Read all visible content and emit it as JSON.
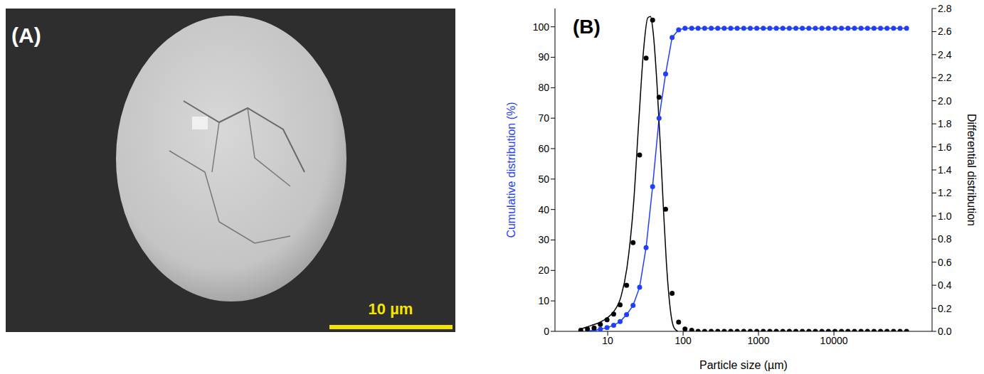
{
  "figure": {
    "panel_a": {
      "label": "(A)",
      "scale_bar_label": "10 µm"
    },
    "panel_b": {
      "label": "(B)"
    }
  },
  "chart_data": {
    "type": "line",
    "xlabel": "Particle size (µm)",
    "ylabel": "Cumulative distribution (%)",
    "y2label": "Differential distribution",
    "log": "x",
    "grid": false,
    "xlim": [
      2,
      200000
    ],
    "xticks": [
      10,
      100,
      1000,
      10000
    ],
    "ylim": [
      0,
      106
    ],
    "yticks": [
      0,
      10,
      20,
      30,
      40,
      50,
      60,
      70,
      80,
      90,
      100
    ],
    "y2lim": [
      0,
      2.8
    ],
    "y2ticks": [
      {
        "value": 0,
        "label": "0.0"
      },
      0.2,
      0.4,
      0.6,
      0.8,
      {
        "value": 1,
        "label": "1.0"
      },
      1.2,
      1.4,
      1.6,
      1.8,
      {
        "value": 2,
        "label": "2.0"
      },
      2.2,
      2.4,
      2.6,
      2.8
    ],
    "series": [
      {
        "color": "#1f3fff",
        "marker": "circle",
        "line_style": "solid",
        "x": [
          4.4,
          5.4,
          6.6,
          8.0,
          9.8,
          12,
          14.6,
          17.8,
          21.7,
          26.5,
          32.3,
          39.4,
          48,
          58.6,
          71.5,
          87.2,
          106,
          130,
          158,
          193,
          236,
          288,
          351,
          428,
          522,
          637,
          777,
          948,
          1157,
          1411,
          1722,
          2100,
          2562,
          3126,
          3814,
          4653,
          5676,
          6925,
          8449,
          10308,
          12575,
          15342,
          18717,
          22835,
          27859,
          33988,
          41466,
          50588,
          61718,
          75296,
          91861
        ],
        "values": [
          null,
          0.1,
          0.3,
          0.7,
          1.2,
          2,
          3.2,
          5.5,
          8.5,
          14.5,
          27.5,
          47.5,
          70,
          84.5,
          96.5,
          99,
          99.5,
          99.5,
          99.5,
          99.5,
          99.5,
          99.5,
          99.5,
          99.5,
          99.5,
          99.5,
          99.5,
          99.5,
          99.5,
          99.5,
          99.5,
          99.5,
          99.5,
          99.5,
          99.5,
          99.5,
          99.5,
          99.5,
          99.5,
          99.5,
          99.5,
          99.5,
          99.5,
          99.5,
          99.5,
          99.5,
          99.5,
          99.5,
          99.5,
          99.5,
          99.5
        ]
      },
      {
        "axis": "y2",
        "color": "#000000",
        "marker": "circle",
        "line_style": "none",
        "x": [
          4.4,
          5.4,
          6.6,
          8.0,
          9.8,
          12,
          14.6,
          17.8,
          21.7,
          26.5,
          32.3,
          39.4,
          48,
          58.6,
          71.5,
          87.2,
          106,
          130,
          158,
          193,
          236,
          288,
          351,
          428,
          522,
          637,
          777,
          948,
          1157,
          1411,
          1722,
          2100,
          2562,
          3126,
          3814,
          4653,
          5676,
          6925,
          8449,
          10308,
          12575,
          15342,
          18717,
          22835,
          27859,
          33988,
          41466,
          50588,
          61718,
          75296,
          91861
        ],
        "values": [
          0.01,
          0.02,
          0.03,
          0.06,
          0.1,
          0.15,
          0.23,
          0.4,
          0.77,
          1.53,
          2.37,
          2.7,
          2.03,
          1.06,
          0.33,
          0.08,
          0.02,
          0.01,
          0,
          0,
          0,
          0,
          0,
          0,
          0,
          0,
          0,
          0,
          0,
          0,
          0,
          0,
          0,
          0,
          0,
          0,
          0,
          0,
          0,
          0,
          0,
          0,
          0,
          0,
          0,
          0,
          0,
          0,
          0,
          0,
          0
        ]
      },
      {
        "axis": "y2",
        "color": "#000000",
        "marker": "none",
        "line_style": "solid",
        "x": [
          4.4,
          6,
          8,
          10,
          12,
          15,
          18,
          22,
          26,
          30,
          34,
          37,
          40,
          45,
          50,
          55,
          60,
          65,
          70,
          76,
          85
        ],
        "values": [
          0.02,
          0.05,
          0.08,
          0.12,
          0.17,
          0.3,
          0.55,
          1.1,
          1.85,
          2.45,
          2.72,
          2.73,
          2.6,
          2.15,
          1.6,
          1.05,
          0.6,
          0.3,
          0.12,
          0.03,
          0
        ]
      }
    ]
  }
}
